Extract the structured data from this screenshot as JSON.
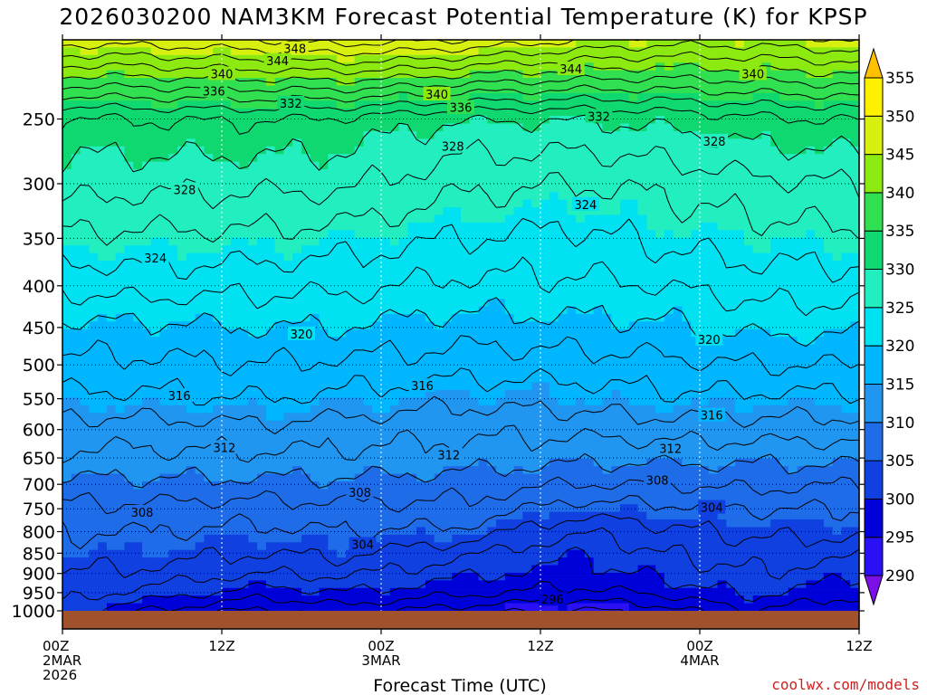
{
  "chart_data": {
    "type": "heatmap",
    "title": "2026030200 NAM3KM Forecast Potential Temperature (K) for KPSP",
    "xlabel": "Forecast Time (UTC)",
    "ylabel": "",
    "x_ticks": [
      {
        "hour": 0,
        "lines": [
          "00Z",
          "2MAR",
          "2026"
        ]
      },
      {
        "hour": 12,
        "lines": [
          "12Z"
        ]
      },
      {
        "hour": 24,
        "lines": [
          "00Z",
          "3MAR"
        ]
      },
      {
        "hour": 36,
        "lines": [
          "12Z"
        ]
      },
      {
        "hour": 48,
        "lines": [
          "00Z",
          "4MAR"
        ]
      },
      {
        "hour": 60,
        "lines": [
          "12Z"
        ]
      }
    ],
    "xlim": [
      0,
      60
    ],
    "y_scale": "log",
    "ylim": [
      1000,
      200
    ],
    "y_ticks": [
      250,
      300,
      350,
      400,
      450,
      500,
      550,
      600,
      650,
      700,
      750,
      800,
      850,
      900,
      950,
      1000
    ],
    "grid": true,
    "colorbar": {
      "units": "K",
      "levels": [
        285,
        290,
        295,
        300,
        305,
        310,
        315,
        320,
        325,
        330,
        335,
        340,
        345,
        350,
        355,
        360
      ],
      "labels": [
        290,
        295,
        300,
        305,
        310,
        315,
        320,
        325,
        330,
        335,
        340,
        345,
        350,
        355
      ],
      "colors": [
        "#7b10e8",
        "#2a10f5",
        "#0000d8",
        "#1040e0",
        "#1e6ce8",
        "#2196f0",
        "#00b6ff",
        "#00e2f2",
        "#22eec0",
        "#10d870",
        "#30e050",
        "#8cea10",
        "#d8f010",
        "#fff000",
        "#ffc000"
      ]
    },
    "profiles": [
      {
        "hour": 0,
        "theta": [
          [
            1000,
            301
          ],
          [
            950,
            303
          ],
          [
            900,
            304
          ],
          [
            850,
            305
          ],
          [
            800,
            306
          ],
          [
            750,
            307.5
          ],
          [
            700,
            309.5
          ],
          [
            650,
            311.5
          ],
          [
            600,
            313
          ],
          [
            550,
            315.5
          ],
          [
            500,
            317.5
          ],
          [
            450,
            319.5
          ],
          [
            400,
            322.5
          ],
          [
            350,
            325.5
          ],
          [
            300,
            329
          ],
          [
            250,
            331.5
          ],
          [
            200,
            347
          ]
        ]
      },
      {
        "hour": 6,
        "theta": [
          [
            1000,
            298
          ],
          [
            950,
            301.5
          ],
          [
            900,
            303.5
          ],
          [
            850,
            305
          ],
          [
            800,
            306
          ],
          [
            750,
            307.5
          ],
          [
            700,
            309.5
          ],
          [
            650,
            311.5
          ],
          [
            600,
            313
          ],
          [
            550,
            315.5
          ],
          [
            500,
            317.5
          ],
          [
            450,
            319.5
          ],
          [
            400,
            323
          ],
          [
            350,
            325.5
          ],
          [
            300,
            328.5
          ],
          [
            250,
            332
          ],
          [
            200,
            347
          ]
        ]
      },
      {
        "hour": 15,
        "theta": [
          [
            1000,
            295.5
          ],
          [
            950,
            299
          ],
          [
            900,
            302
          ],
          [
            850,
            304
          ],
          [
            800,
            305.5
          ],
          [
            750,
            307
          ],
          [
            700,
            309.5
          ],
          [
            650,
            311.5
          ],
          [
            600,
            313.5
          ],
          [
            550,
            316
          ],
          [
            500,
            318
          ],
          [
            450,
            320
          ],
          [
            400,
            322.5
          ],
          [
            350,
            325.5
          ],
          [
            300,
            328.5
          ],
          [
            250,
            332
          ],
          [
            200,
            348
          ]
        ]
      },
      {
        "hour": 21,
        "theta": [
          [
            1000,
            297
          ],
          [
            950,
            300
          ],
          [
            900,
            302.5
          ],
          [
            850,
            304.5
          ],
          [
            800,
            306
          ],
          [
            750,
            307.5
          ],
          [
            700,
            309.5
          ],
          [
            650,
            311.5
          ],
          [
            600,
            313
          ],
          [
            550,
            315.5
          ],
          [
            500,
            317.5
          ],
          [
            450,
            320
          ],
          [
            400,
            322.5
          ],
          [
            350,
            325
          ],
          [
            300,
            328.5
          ],
          [
            250,
            331.5
          ],
          [
            200,
            349
          ]
        ]
      },
      {
        "hour": 30,
        "theta": [
          [
            1000,
            295
          ],
          [
            950,
            298.5
          ],
          [
            900,
            300.5
          ],
          [
            850,
            302.5
          ],
          [
            800,
            305.5
          ],
          [
            750,
            307.5
          ],
          [
            700,
            309
          ],
          [
            650,
            311
          ],
          [
            600,
            312.5
          ],
          [
            550,
            314.5
          ],
          [
            500,
            317
          ],
          [
            450,
            319
          ],
          [
            400,
            321.5
          ],
          [
            350,
            324
          ],
          [
            300,
            326.5
          ],
          [
            250,
            330
          ],
          [
            200,
            348
          ]
        ]
      },
      {
        "hour": 39,
        "theta": [
          [
            1000,
            293.5
          ],
          [
            950,
            297.5
          ],
          [
            900,
            299
          ],
          [
            850,
            300
          ],
          [
            800,
            302
          ],
          [
            750,
            305
          ],
          [
            700,
            308
          ],
          [
            650,
            310.5
          ],
          [
            600,
            312.5
          ],
          [
            550,
            315
          ],
          [
            500,
            317
          ],
          [
            450,
            319.5
          ],
          [
            400,
            321.5
          ],
          [
            350,
            323.5
          ],
          [
            300,
            326
          ],
          [
            250,
            330
          ],
          [
            200,
            346
          ]
        ]
      },
      {
        "hour": 45,
        "theta": [
          [
            1000,
            295
          ],
          [
            950,
            298.5
          ],
          [
            900,
            300.5
          ],
          [
            850,
            302
          ],
          [
            800,
            303.5
          ],
          [
            750,
            305.5
          ],
          [
            700,
            308
          ],
          [
            650,
            310.5
          ],
          [
            600,
            313
          ],
          [
            550,
            315.5
          ],
          [
            500,
            317.5
          ],
          [
            450,
            319.5
          ],
          [
            400,
            322
          ],
          [
            350,
            324.5
          ],
          [
            300,
            326.5
          ],
          [
            250,
            330.5
          ],
          [
            200,
            345
          ]
        ]
      },
      {
        "hour": 52,
        "theta": [
          [
            1000,
            298
          ],
          [
            950,
            300.5
          ],
          [
            900,
            302
          ],
          [
            850,
            303
          ],
          [
            800,
            304.5
          ],
          [
            750,
            306
          ],
          [
            700,
            308.5
          ],
          [
            650,
            310.5
          ],
          [
            600,
            313
          ],
          [
            550,
            315.5
          ],
          [
            500,
            318
          ],
          [
            450,
            320.5
          ],
          [
            400,
            323
          ],
          [
            350,
            325
          ],
          [
            300,
            327.5
          ],
          [
            250,
            331.5
          ],
          [
            200,
            345
          ]
        ]
      },
      {
        "hour": 60,
        "theta": [
          [
            1000,
            296
          ],
          [
            950,
            298.5
          ],
          [
            900,
            300.5
          ],
          [
            850,
            302.5
          ],
          [
            800,
            304.5
          ],
          [
            750,
            306
          ],
          [
            700,
            308
          ],
          [
            650,
            310.5
          ],
          [
            600,
            313
          ],
          [
            550,
            315.5
          ],
          [
            500,
            318
          ],
          [
            450,
            320.5
          ],
          [
            400,
            323
          ],
          [
            350,
            325.5
          ],
          [
            300,
            328
          ],
          [
            250,
            332
          ],
          [
            200,
            346
          ]
        ]
      }
    ],
    "contour_interval": 2,
    "contour_labels": [
      {
        "text": "348",
        "hour": 17.5,
        "p": 205
      },
      {
        "text": "344",
        "hour": 16.2,
        "p": 212
      },
      {
        "text": "340",
        "hour": 12,
        "p": 220
      },
      {
        "text": "336",
        "hour": 11.4,
        "p": 231
      },
      {
        "text": "332",
        "hour": 17.2,
        "p": 239
      },
      {
        "text": "340",
        "hour": 28.2,
        "p": 233
      },
      {
        "text": "336",
        "hour": 30,
        "p": 242
      },
      {
        "text": "344",
        "hour": 38.3,
        "p": 217
      },
      {
        "text": "340",
        "hour": 52,
        "p": 220
      },
      {
        "text": "332",
        "hour": 40.4,
        "p": 248
      },
      {
        "text": "328",
        "hour": 29.4,
        "p": 270
      },
      {
        "text": "328",
        "hour": 49.1,
        "p": 266
      },
      {
        "text": "328",
        "hour": 9.2,
        "p": 305
      },
      {
        "text": "324",
        "hour": 39.4,
        "p": 318
      },
      {
        "text": "324",
        "hour": 7,
        "p": 370
      },
      {
        "text": "320",
        "hour": 18,
        "p": 458
      },
      {
        "text": "320",
        "hour": 48.7,
        "p": 465
      },
      {
        "text": "316",
        "hour": 27.1,
        "p": 530
      },
      {
        "text": "316",
        "hour": 8.8,
        "p": 545
      },
      {
        "text": "316",
        "hour": 48.9,
        "p": 576
      },
      {
        "text": "312",
        "hour": 12.2,
        "p": 631
      },
      {
        "text": "312",
        "hour": 29.1,
        "p": 644
      },
      {
        "text": "312",
        "hour": 45.8,
        "p": 633
      },
      {
        "text": "308",
        "hour": 22.4,
        "p": 716
      },
      {
        "text": "308",
        "hour": 44.8,
        "p": 692
      },
      {
        "text": "308",
        "hour": 6,
        "p": 757
      },
      {
        "text": "304",
        "hour": 48.9,
        "p": 747
      },
      {
        "text": "304",
        "hour": 22.6,
        "p": 829
      },
      {
        "text": "296",
        "hour": 36.9,
        "p": 968
      }
    ]
  },
  "credit": "coolwx.com/models"
}
